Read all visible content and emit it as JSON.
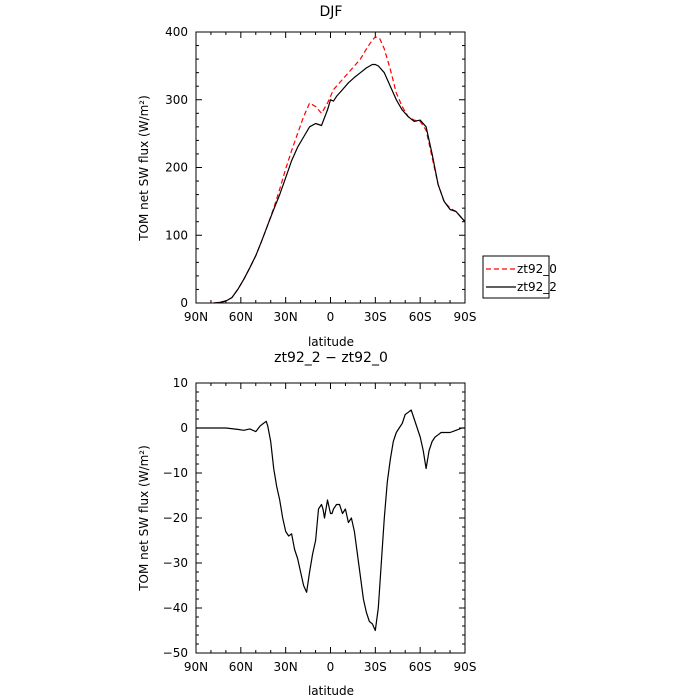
{
  "chart_data": [
    {
      "type": "line",
      "title": "DJF",
      "xlabel": "latitude",
      "ylabel": "TOM net SW flux (W/m²)",
      "xlim": [
        90,
        -90
      ],
      "ylim": [
        0,
        400
      ],
      "x_ticks": [
        90,
        60,
        30,
        0,
        -30,
        -60,
        -90
      ],
      "x_tick_labels": [
        "90N",
        "60N",
        "30N",
        "0",
        "30S",
        "60S",
        "90S"
      ],
      "y_ticks": [
        0,
        100,
        200,
        300,
        400
      ],
      "y_tick_labels": [
        "0",
        "100",
        "200",
        "300",
        "400"
      ],
      "grid": false,
      "legend": "right",
      "series": [
        {
          "name": "zt92_0",
          "color": "#ff0000",
          "dash": "dashed",
          "x": [
            78,
            74,
            70,
            66,
            62,
            58,
            54,
            50,
            46,
            42,
            38,
            34,
            30,
            26,
            22,
            18,
            14,
            10,
            6,
            2,
            0,
            -2,
            -4,
            -8,
            -12,
            -16,
            -20,
            -24,
            -27,
            -30,
            -33,
            -36,
            -40,
            -44,
            -48,
            -52,
            -56,
            -60,
            -64,
            -68,
            -72,
            -76,
            -80,
            -84,
            -88,
            -90
          ],
          "y": [
            0,
            1,
            3,
            8,
            20,
            35,
            52,
            70,
            92,
            115,
            140,
            168,
            198,
            225,
            250,
            275,
            295,
            290,
            280,
            295,
            305,
            315,
            320,
            330,
            340,
            350,
            360,
            375,
            385,
            393,
            390,
            375,
            345,
            310,
            290,
            275,
            270,
            268,
            255,
            215,
            175,
            150,
            140,
            135,
            125,
            120
          ]
        },
        {
          "name": "zt92_2",
          "color": "#000000",
          "dash": "solid",
          "x": [
            78,
            74,
            70,
            66,
            62,
            58,
            54,
            50,
            46,
            42,
            38,
            34,
            30,
            26,
            22,
            18,
            14,
            10,
            6,
            2,
            0,
            -2,
            -4,
            -8,
            -12,
            -16,
            -20,
            -24,
            -28,
            -30,
            -32,
            -36,
            -40,
            -44,
            -48,
            -52,
            -56,
            -60,
            -64,
            -68,
            -72,
            -76,
            -80,
            -84,
            -88,
            -90
          ],
          "y": [
            0,
            1,
            3,
            8,
            20,
            35,
            52,
            70,
            92,
            115,
            138,
            160,
            185,
            210,
            230,
            245,
            260,
            265,
            262,
            285,
            300,
            298,
            305,
            315,
            325,
            333,
            340,
            347,
            352,
            352,
            350,
            340,
            320,
            300,
            285,
            275,
            268,
            270,
            260,
            220,
            175,
            150,
            138,
            135,
            125,
            120
          ]
        }
      ]
    },
    {
      "type": "line",
      "title": "zt92_2 − zt92_0",
      "xlabel": "latitude",
      "ylabel": "TOM net SW flux (W/m²)",
      "xlim": [
        90,
        -90
      ],
      "ylim": [
        -50,
        10
      ],
      "x_ticks": [
        90,
        60,
        30,
        0,
        -30,
        -60,
        -90
      ],
      "x_tick_labels": [
        "90N",
        "60N",
        "30N",
        "0",
        "30S",
        "60S",
        "90S"
      ],
      "y_ticks": [
        -50,
        -40,
        -30,
        -20,
        -10,
        0,
        10
      ],
      "y_tick_labels": [
        "−50",
        "−40",
        "−30",
        "−20",
        "−10",
        "0",
        "10"
      ],
      "grid": false,
      "series": [
        {
          "color": "#000000",
          "x": [
            90,
            80,
            70,
            62,
            58,
            54,
            50,
            47,
            45,
            43,
            42,
            40,
            38,
            36,
            34,
            32,
            30,
            28,
            26,
            24,
            22,
            20,
            18,
            16,
            14,
            12,
            10,
            8,
            6,
            5,
            4,
            3,
            2,
            0,
            -1,
            -2,
            -4,
            -6,
            -8,
            -10,
            -12,
            -14,
            -16,
            -18,
            -20,
            -22,
            -24,
            -26,
            -28,
            -30,
            -32,
            -34,
            -36,
            -38,
            -40,
            -42,
            -44,
            -46,
            -48,
            -50,
            -52,
            -54,
            -56,
            -58,
            -60,
            -62,
            -64,
            -66,
            -68,
            -70,
            -72,
            -74,
            -76,
            -78,
            -80,
            -84,
            -88,
            -90
          ],
          "y": [
            0,
            0,
            0,
            -0.3,
            -0.5,
            -0.2,
            -0.8,
            0.5,
            1,
            1.5,
            0.5,
            -3,
            -9,
            -13,
            -16,
            -20,
            -23,
            -24,
            -23.5,
            -27,
            -29,
            -32,
            -35,
            -36.5,
            -32,
            -28,
            -25,
            -18,
            -17,
            -18,
            -20,
            -18,
            -16,
            -19,
            -19,
            -18,
            -17,
            -17,
            -19,
            -18,
            -21,
            -20,
            -23,
            -28,
            -33,
            -38,
            -41,
            -43,
            -43.5,
            -45,
            -40,
            -30,
            -20,
            -12,
            -7,
            -3,
            -1,
            0,
            1,
            3,
            3.5,
            4,
            2,
            0,
            -2,
            -5,
            -9,
            -5,
            -3,
            -2,
            -1.5,
            -1,
            -1,
            -1,
            -1,
            -0.5,
            0,
            0
          ]
        }
      ]
    }
  ]
}
